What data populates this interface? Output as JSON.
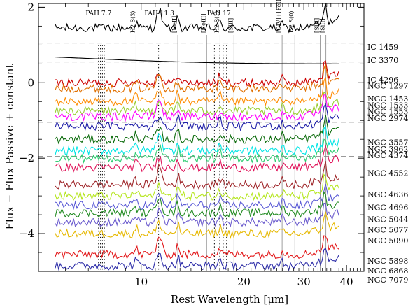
{
  "chart_data": {
    "type": "line",
    "title": "",
    "xlabel": "Rest Wavelength [μm]",
    "ylabel": "Flux − Flux Passive + constant",
    "xscale": "log",
    "xlim": [
      5.0,
      45.0
    ],
    "ylim": [
      -5.0,
      2.1
    ],
    "x_ticks": [
      {
        "value": 10,
        "label": "10"
      },
      {
        "value": 20,
        "label": "20"
      },
      {
        "value": 30,
        "label": "30"
      },
      {
        "value": 40,
        "label": "40"
      }
    ],
    "y_ticks": [
      {
        "value": 2,
        "label": "2"
      },
      {
        "value": 0,
        "label": "0"
      },
      {
        "value": -2,
        "label": "−2"
      },
      {
        "value": -4,
        "label": "−4"
      }
    ],
    "features": [
      {
        "name": "PAH 7.7",
        "wavelengths": [
          7.5,
          7.6,
          7.7,
          7.8
        ],
        "label_x": 7.5
      },
      {
        "name": "PAH 11.3",
        "wavelengths": [
          11.25
        ],
        "label_x": 11.3
      },
      {
        "name": "PAH 17",
        "wavelengths": [
          16.4,
          17.0,
          17.4,
          17.8
        ],
        "label_x": 16.9
      }
    ],
    "lines": [
      {
        "name": "H2 S(3)",
        "wavelength": 9.66
      },
      {
        "name": "[NeII]",
        "wavelength": 12.81
      },
      {
        "name": "[NeIII]",
        "wavelength": 15.56
      },
      {
        "name": "H2 S(1)",
        "wavelength": 17.03
      },
      {
        "name": "[SIII]",
        "wavelength": 18.71
      },
      {
        "name": "[OIV]+[FeII]",
        "wavelength": 25.9
      },
      {
        "name": "H2 S(0)",
        "wavelength": 28.22
      },
      {
        "name": "[SIII]",
        "wavelength": 33.48
      },
      {
        "name": "[SiII]",
        "wavelength": 34.81
      }
    ],
    "dashed_levels": [
      1.05,
      0.55,
      -1.05,
      -1.95
    ],
    "series": [
      {
        "name": "IC 1459",
        "color": "#000000",
        "offset": 1.45,
        "label_y": 0.95
      },
      {
        "name": "IC 3370",
        "color": "#000000",
        "offset": 0.55,
        "smooth": true,
        "label_y": 0.6
      },
      {
        "name": "IC 4296",
        "color": "#cc0000",
        "offset": 0.0,
        "label_y": 0.08
      },
      {
        "name": "NGC 1297",
        "color": "#e07000",
        "offset": -0.15,
        "label_y": -0.08
      },
      {
        "name": "NGC 1453",
        "color": "#ff8c00",
        "offset": -0.5,
        "label_y": -0.42
      },
      {
        "name": "NGC 1533",
        "color": "#9acd32",
        "offset": -0.75,
        "label_y": -0.6
      },
      {
        "name": "NGC 1553",
        "color": "#ff00ff",
        "offset": -0.9,
        "label_y": -0.76
      },
      {
        "name": "NGC 2974",
        "color": "#1e1ea8",
        "offset": -1.15,
        "label_y": -0.94
      },
      {
        "name": "NGC 3557",
        "color": "#0b6b0b",
        "offset": -1.5,
        "label_y": -1.58
      },
      {
        "name": "NGC 3962",
        "color": "#00e5e5",
        "offset": -1.8,
        "label_y": -1.76
      },
      {
        "name": "NGC 4374",
        "color": "#2ecc71",
        "offset": -2.0,
        "label_y": -1.92
      },
      {
        "name": "NGC 4552",
        "color": "#e0145a",
        "offset": -2.25,
        "label_y": -2.4
      },
      {
        "name": "NGC 4636",
        "color": "#a0292d",
        "offset": -2.7,
        "label_y": -2.96
      },
      {
        "name": "NGC 4696",
        "color": "#b5e61d",
        "offset": -3.0,
        "label_y": -3.3
      },
      {
        "name": "NGC 5044",
        "color": "#5b5bd6",
        "offset": -3.25,
        "label_y": -3.62
      },
      {
        "name": "NGC 5077",
        "color": "#228b22",
        "offset": -3.45,
        "label_y": -3.9
      },
      {
        "name": "NGC 5090",
        "color": "#6a5acd",
        "offset": -3.7,
        "label_y": -4.18
      },
      {
        "name": "NGC 5898",
        "color": "#e6b800",
        "offset": -4.0,
        "label_y": -4.72
      },
      {
        "name": "NGC 6868",
        "color": "#e31a1c",
        "offset": -4.55,
        "label_y": -4.98
      },
      {
        "name": "NGC 7079",
        "color": "#2c2ca8",
        "offset": -4.85,
        "label_y": -5.22
      }
    ]
  }
}
